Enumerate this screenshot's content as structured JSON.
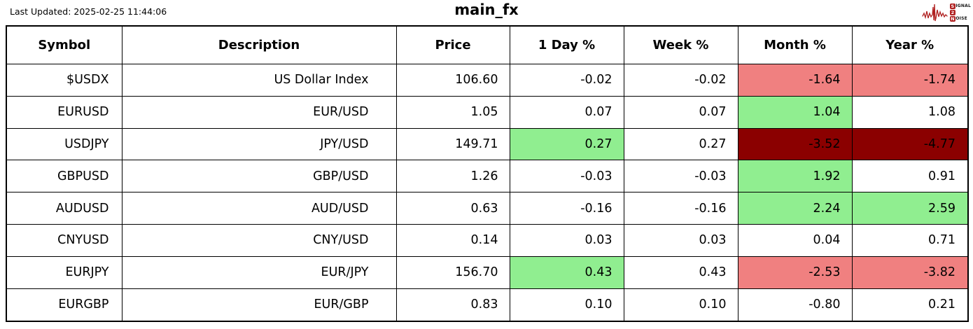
{
  "header": {
    "last_updated": "Last Updated: 2025-02-25 11:44:06",
    "logo": {
      "rows": [
        {
          "box": "S",
          "rest": "IGNAL"
        },
        {
          "box": "2",
          "rest": ""
        },
        {
          "box": "N",
          "rest": "OISE"
        }
      ]
    }
  },
  "colors": {
    "positive": "#90ee90",
    "negative": "#f08080",
    "strong_negative": "#8b0000",
    "border": "#000000",
    "logo_red": "#b02020"
  },
  "chart_data": {
    "type": "table",
    "title": "main_fx",
    "columns": [
      "Symbol",
      "Description",
      "Price",
      "1 Day %",
      "Week %",
      "Month %",
      "Year %"
    ],
    "column_keys": [
      "symbol",
      "description",
      "price",
      "day-pct",
      "week-pct",
      "month-pct",
      "year-pct"
    ],
    "rows": [
      {
        "cells": [
          "$USDX",
          "US Dollar Index",
          "106.60",
          "-0.02",
          "-0.02",
          "-1.64",
          "-1.74"
        ],
        "bg": [
          "",
          "",
          "",
          "",
          "",
          "neg",
          "neg"
        ]
      },
      {
        "cells": [
          "EURUSD",
          "EUR/USD",
          "1.05",
          "0.07",
          "0.07",
          "1.04",
          "1.08"
        ],
        "bg": [
          "",
          "",
          "",
          "",
          "",
          "pos",
          ""
        ]
      },
      {
        "cells": [
          "USDJPY",
          "JPY/USD",
          "149.71",
          "0.27",
          "0.27",
          "-3.52",
          "-4.77"
        ],
        "bg": [
          "",
          "",
          "",
          "pos",
          "",
          "strongneg",
          "strongneg"
        ]
      },
      {
        "cells": [
          "GBPUSD",
          "GBP/USD",
          "1.26",
          "-0.03",
          "-0.03",
          "1.92",
          "0.91"
        ],
        "bg": [
          "",
          "",
          "",
          "",
          "",
          "pos",
          ""
        ]
      },
      {
        "cells": [
          "AUDUSD",
          "AUD/USD",
          "0.63",
          "-0.16",
          "-0.16",
          "2.24",
          "2.59"
        ],
        "bg": [
          "",
          "",
          "",
          "",
          "",
          "pos",
          "pos"
        ]
      },
      {
        "cells": [
          "CNYUSD",
          "CNY/USD",
          "0.14",
          "0.03",
          "0.03",
          "0.04",
          "0.71"
        ],
        "bg": [
          "",
          "",
          "",
          "",
          "",
          "",
          ""
        ]
      },
      {
        "cells": [
          "EURJPY",
          "EUR/JPY",
          "156.70",
          "0.43",
          "0.43",
          "-2.53",
          "-3.82"
        ],
        "bg": [
          "",
          "",
          "",
          "pos",
          "",
          "neg",
          "neg"
        ]
      },
      {
        "cells": [
          "EURGBP",
          "EUR/GBP",
          "0.83",
          "0.10",
          "0.10",
          "-0.80",
          "0.21"
        ],
        "bg": [
          "",
          "",
          "",
          "",
          "",
          "",
          ""
        ]
      }
    ]
  }
}
